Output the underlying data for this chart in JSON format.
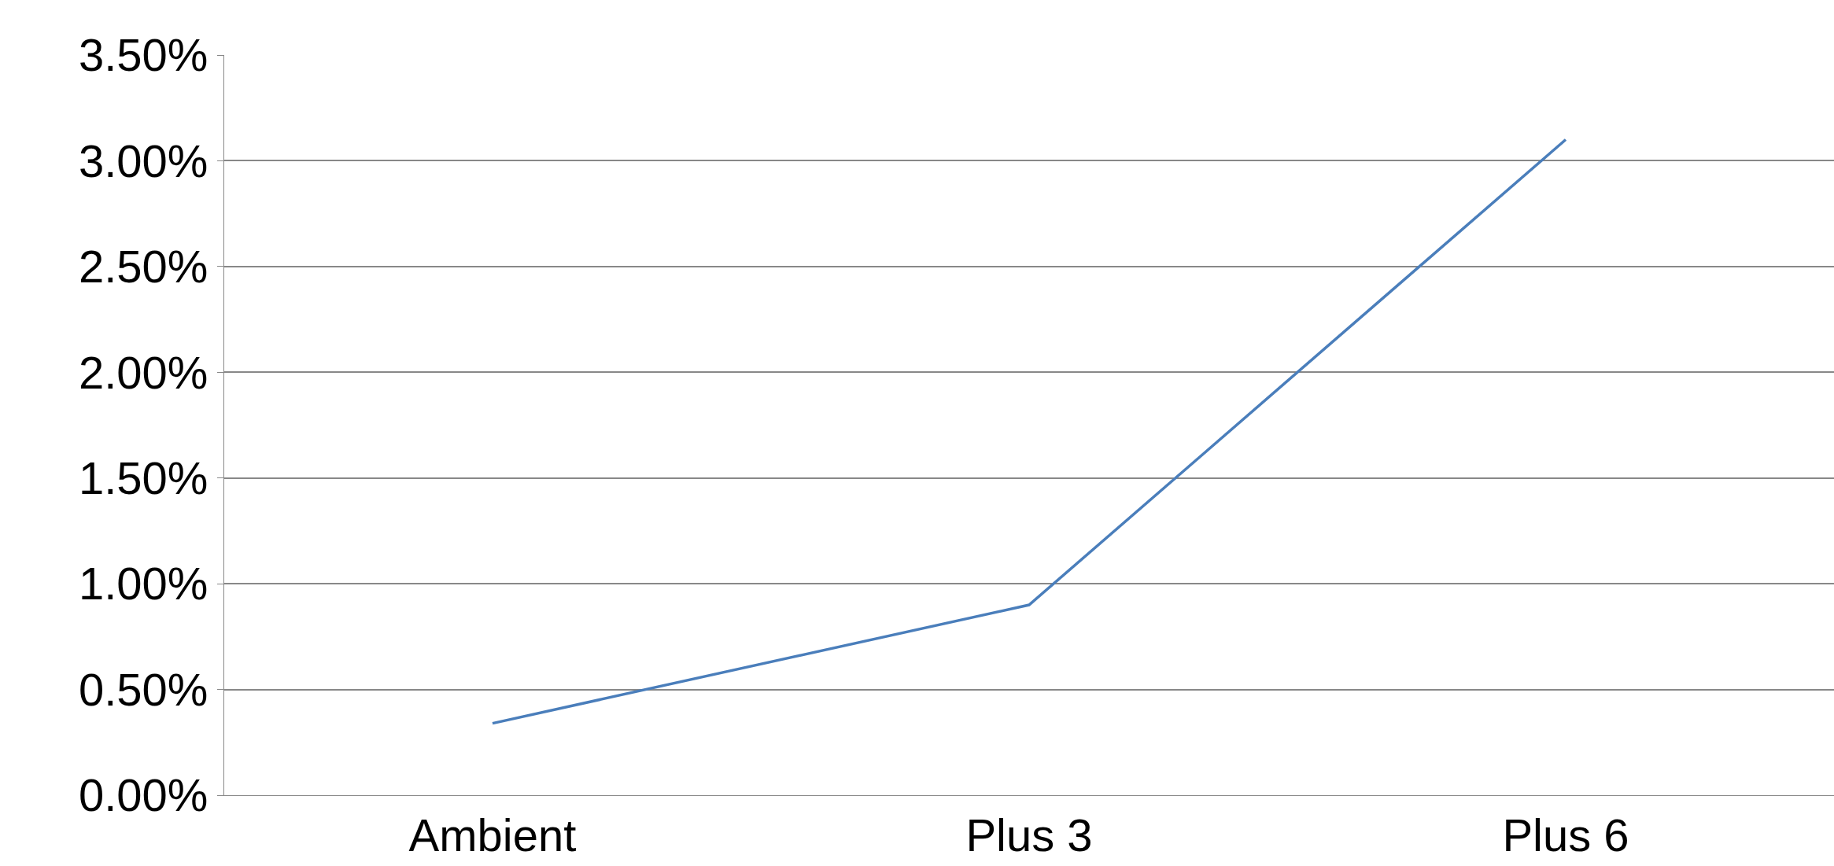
{
  "chart_data": {
    "type": "line",
    "categories": [
      "Ambient",
      "Plus 3",
      "Plus 6"
    ],
    "series": [
      {
        "color": "#4a7ebb",
        "values": [
          0.34,
          0.9,
          3.1
        ]
      }
    ],
    "ylim": [
      0,
      3.5
    ],
    "yticks": [
      {
        "value": 0,
        "label": "0.00%"
      },
      {
        "value": 0.5,
        "label": "0.50%"
      },
      {
        "value": 1,
        "label": "1.00%"
      },
      {
        "value": 1.5,
        "label": "1.50%"
      },
      {
        "value": 2,
        "label": "2.00%"
      },
      {
        "value": 2.5,
        "label": "2.50%"
      },
      {
        "value": 3,
        "label": "3.00%"
      },
      {
        "value": 3.5,
        "label": "3.50%"
      }
    ],
    "grid": "y",
    "legend": false,
    "marker": "none",
    "line_style": "solid"
  }
}
